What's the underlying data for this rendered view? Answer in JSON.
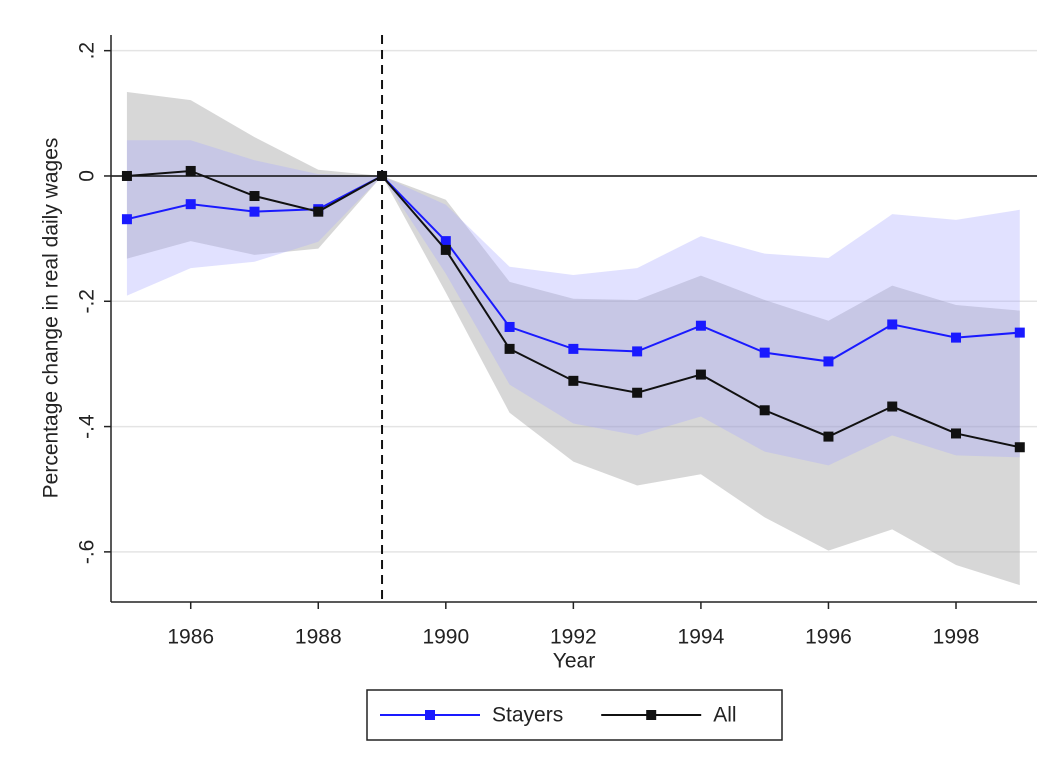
{
  "chart_data": {
    "type": "line",
    "xlabel": "Year",
    "ylabel": "Percentage change in real daily wages",
    "x": [
      1985,
      1986,
      1987,
      1988,
      1989,
      1990,
      1991,
      1992,
      1993,
      1994,
      1995,
      1996,
      1997,
      1998,
      1999
    ],
    "series": [
      {
        "name": "Stayers",
        "color": "#1a1aff",
        "band_color": "rgba(170,170,255,0.35)",
        "values": [
          -0.069,
          -0.045,
          -0.057,
          -0.053,
          0,
          -0.104,
          -0.241,
          -0.276,
          -0.28,
          -0.239,
          -0.282,
          -0.296,
          -0.237,
          -0.258,
          -0.25
        ],
        "upper": [
          0.057,
          0.057,
          0.025,
          0.003,
          0,
          -0.046,
          -0.145,
          -0.158,
          -0.147,
          -0.096,
          -0.124,
          -0.131,
          -0.061,
          -0.07,
          -0.054
        ],
        "lower": [
          -0.191,
          -0.147,
          -0.137,
          -0.105,
          0,
          -0.156,
          -0.333,
          -0.395,
          -0.414,
          -0.384,
          -0.44,
          -0.462,
          -0.414,
          -0.446,
          -0.449
        ]
      },
      {
        "name": "All",
        "color": "#111111",
        "band_color": "rgba(140,140,140,0.35)",
        "values": [
          0,
          0.008,
          -0.032,
          -0.057,
          0,
          -0.118,
          -0.276,
          -0.327,
          -0.346,
          -0.317,
          -0.374,
          -0.416,
          -0.368,
          -0.411,
          -0.433
        ],
        "upper": [
          0.134,
          0.121,
          0.062,
          0.01,
          0,
          -0.038,
          -0.169,
          -0.196,
          -0.198,
          -0.159,
          -0.198,
          -0.231,
          -0.175,
          -0.206,
          -0.215
        ],
        "lower": [
          -0.132,
          -0.104,
          -0.126,
          -0.116,
          0,
          -0.186,
          -0.378,
          -0.456,
          -0.494,
          -0.476,
          -0.545,
          -0.598,
          -0.564,
          -0.621,
          -0.653
        ]
      }
    ],
    "xlim": [
      1984.75,
      1999.27
    ],
    "xticks": [
      1986,
      1988,
      1990,
      1992,
      1994,
      1996,
      1998
    ],
    "ylim": [
      -0.68,
      0.225
    ],
    "yticks": [
      {
        "value": -0.6,
        "label": "-.6"
      },
      {
        "value": -0.4,
        "label": "-.4"
      },
      {
        "value": -0.2,
        "label": "-.2"
      },
      0,
      {
        "value": 0.2,
        "label": ".2"
      }
    ],
    "grid": true,
    "hline": 0,
    "vline": 1989,
    "legend": "bottom"
  }
}
